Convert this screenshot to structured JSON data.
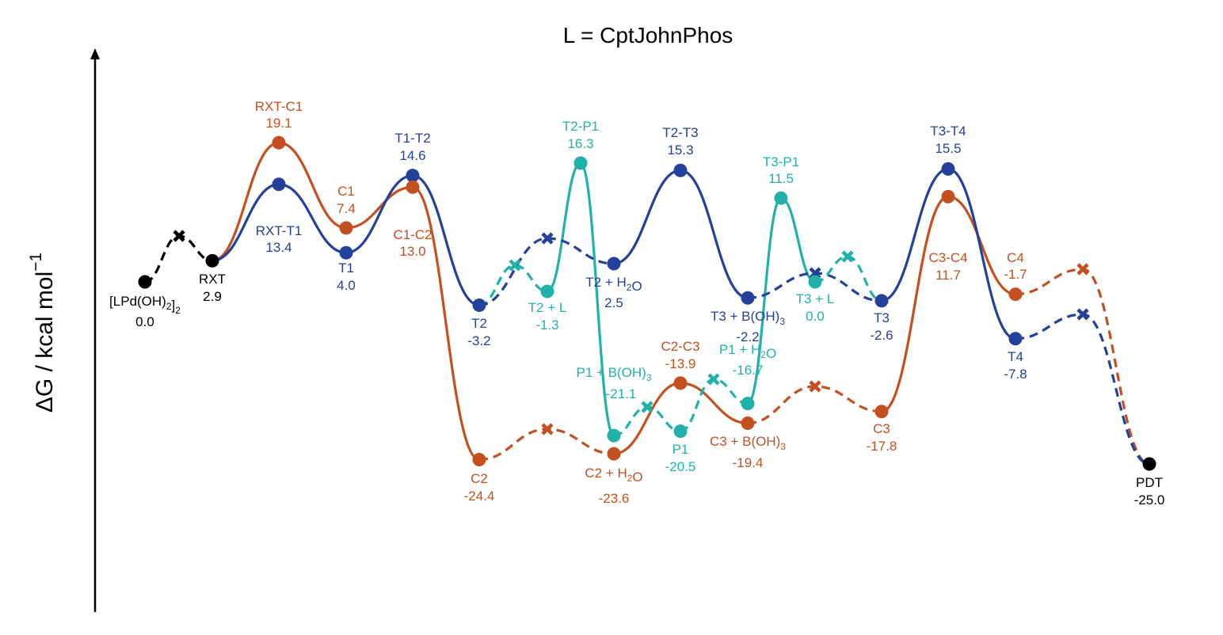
{
  "chart_data": {
    "type": "line",
    "title": "L = CptJohnPhos",
    "ylabel": "ΔG / kcal mol",
    "ylabel_superscript": "−1",
    "yunit": "kcal/mol",
    "grid": false,
    "legend": "none",
    "colors": {
      "black": "#000000",
      "blue": "#23409A",
      "orange": "#C3501E",
      "teal": "#20B2AA"
    },
    "points": [
      {
        "id": "start",
        "label": "[LPd(OH)2]2",
        "value": 0.0,
        "text": "0.0",
        "color": "black",
        "marker": "dot"
      },
      {
        "id": "x0",
        "color": "black",
        "marker": "x"
      },
      {
        "id": "rxt",
        "label": "RXT",
        "value": 2.9,
        "text": "2.9",
        "color": "black",
        "marker": "dot"
      },
      {
        "id": "rxt_c1",
        "label": "RXT-C1",
        "value": 19.1,
        "text": "19.1",
        "color": "orange",
        "marker": "dot"
      },
      {
        "id": "rxt_t1",
        "label": "RXT-T1",
        "value": 13.4,
        "text": "13.4",
        "color": "blue",
        "marker": "dot"
      },
      {
        "id": "c1",
        "label": "C1",
        "value": 7.4,
        "text": "7.4",
        "color": "orange",
        "marker": "dot"
      },
      {
        "id": "t1",
        "label": "T1",
        "value": 4.0,
        "text": "4.0",
        "color": "blue",
        "marker": "dot"
      },
      {
        "id": "t1_t2",
        "label": "T1-T2",
        "value": 14.6,
        "text": "14.6",
        "color": "blue",
        "marker": "dot"
      },
      {
        "id": "c1_c2",
        "label": "C1-C2",
        "value": 13.0,
        "text": "13.0",
        "color": "orange",
        "marker": "dot"
      },
      {
        "id": "t2",
        "label": "T2",
        "value": -3.2,
        "text": "-3.2",
        "color": "blue",
        "marker": "dot"
      },
      {
        "id": "c2",
        "label": "C2",
        "value": -24.4,
        "text": "-24.4",
        "color": "orange",
        "marker": "dot"
      },
      {
        "id": "x_teal1",
        "color": "teal",
        "marker": "x"
      },
      {
        "id": "t2l",
        "label": "T2 + L",
        "value": -1.3,
        "text": "-1.3",
        "color": "teal",
        "marker": "dot"
      },
      {
        "id": "t2_p1",
        "label": "T2-P1",
        "value": 16.3,
        "text": "16.3",
        "color": "teal",
        "marker": "dot"
      },
      {
        "id": "x_blue1",
        "color": "blue",
        "marker": "x"
      },
      {
        "id": "x_or1",
        "color": "orange",
        "marker": "x"
      },
      {
        "id": "t2h2o",
        "label": "T2 + H2O",
        "value": 2.5,
        "text": "2.5",
        "color": "blue",
        "marker": "dot"
      },
      {
        "id": "p1b",
        "label": "P1 + B(OH)3",
        "value": -21.1,
        "text": "-21.1",
        "color": "teal",
        "marker": "dot"
      },
      {
        "id": "c2h2o",
        "label": "C2 + H2O",
        "value": -23.6,
        "text": "-23.6",
        "color": "orange",
        "marker": "dot"
      },
      {
        "id": "x_teal2",
        "color": "teal",
        "marker": "x"
      },
      {
        "id": "t2_t3",
        "label": "T2-T3",
        "value": 15.3,
        "text": "15.3",
        "color": "blue",
        "marker": "dot"
      },
      {
        "id": "c2_c3",
        "label": "C2-C3",
        "value": -13.9,
        "text": "-13.9",
        "color": "orange",
        "marker": "dot"
      },
      {
        "id": "p1",
        "label": "P1",
        "value": -20.5,
        "text": "-20.5",
        "color": "teal",
        "marker": "dot"
      },
      {
        "id": "x_teal3",
        "color": "teal",
        "marker": "x"
      },
      {
        "id": "t3b",
        "label": "T3 + B(OH)3",
        "value": -2.2,
        "text": "-2.2",
        "color": "blue",
        "marker": "dot"
      },
      {
        "id": "p1h2o",
        "label": "P1 + H2O",
        "value": -16.7,
        "text": "-16.7",
        "color": "teal",
        "marker": "dot"
      },
      {
        "id": "c3b",
        "label": "C3 + B(OH)3",
        "value": -19.4,
        "text": "-19.4",
        "color": "orange",
        "marker": "dot"
      },
      {
        "id": "t3_p1",
        "label": "T3-P1",
        "value": 11.5,
        "text": "11.5",
        "color": "teal",
        "marker": "dot"
      },
      {
        "id": "x_blue2",
        "color": "blue",
        "marker": "x"
      },
      {
        "id": "t3l",
        "label": "T3 + L",
        "value": 0.0,
        "text": "0.0",
        "color": "teal",
        "marker": "dot"
      },
      {
        "id": "x_or2",
        "color": "orange",
        "marker": "x"
      },
      {
        "id": "x_teal4",
        "color": "teal",
        "marker": "x"
      },
      {
        "id": "t3",
        "label": "T3",
        "value": -2.6,
        "text": "-2.6",
        "color": "blue",
        "marker": "dot"
      },
      {
        "id": "c3",
        "label": "C3",
        "value": -17.8,
        "text": "-17.8",
        "color": "orange",
        "marker": "dot"
      },
      {
        "id": "t3_t4",
        "label": "T3-T4",
        "value": 15.5,
        "text": "15.5",
        "color": "blue",
        "marker": "dot"
      },
      {
        "id": "c3_c4",
        "label": "C3-C4",
        "value": 11.7,
        "text": "11.7",
        "color": "orange",
        "marker": "dot"
      },
      {
        "id": "c4",
        "label": "C4",
        "value": -1.7,
        "text": "-1.7",
        "color": "orange",
        "marker": "dot"
      },
      {
        "id": "t4",
        "label": "T4",
        "value": -7.8,
        "text": "-7.8",
        "color": "blue",
        "marker": "dot"
      },
      {
        "id": "x_or3",
        "color": "orange",
        "marker": "x"
      },
      {
        "id": "x_blue3",
        "color": "blue",
        "marker": "x"
      },
      {
        "id": "pdt",
        "label": "PDT",
        "value": -25.0,
        "text": "-25.0",
        "color": "black",
        "marker": "dot"
      }
    ],
    "segments": [
      {
        "path": [
          "start",
          "x0",
          "rxt"
        ],
        "color": "black",
        "style": "dashed"
      },
      {
        "path": [
          "rxt",
          "rxt_c1",
          "c1",
          "c1_c2",
          "c2"
        ],
        "color": "orange",
        "style": "solid"
      },
      {
        "path": [
          "rxt",
          "rxt_t1",
          "t1",
          "t1_t2",
          "t2"
        ],
        "color": "blue",
        "style": "solid"
      },
      {
        "path": [
          "t2",
          "x_teal1",
          "t2l"
        ],
        "color": "teal",
        "style": "dashed"
      },
      {
        "path": [
          "t2l",
          "t2_p1",
          "p1b"
        ],
        "color": "teal",
        "style": "solid"
      },
      {
        "path": [
          "t2",
          "x_blue1",
          "t2h2o"
        ],
        "color": "blue",
        "style": "dashed"
      },
      {
        "path": [
          "c2",
          "x_or1",
          "c2h2o"
        ],
        "color": "orange",
        "style": "dashed"
      },
      {
        "path": [
          "p1b",
          "x_teal2",
          "p1"
        ],
        "color": "teal",
        "style": "dashed"
      },
      {
        "path": [
          "t2h2o",
          "t2_t3",
          "t3b"
        ],
        "color": "blue",
        "style": "solid"
      },
      {
        "path": [
          "c2h2o",
          "c2_c3",
          "c3b"
        ],
        "color": "orange",
        "style": "solid"
      },
      {
        "path": [
          "p1",
          "x_teal3",
          "p1h2o"
        ],
        "color": "teal",
        "style": "dashed"
      },
      {
        "path": [
          "p1h2o",
          "t3_p1",
          "t3l"
        ],
        "color": "teal",
        "style": "solid"
      },
      {
        "path": [
          "t3b",
          "x_blue2",
          "t3"
        ],
        "color": "blue",
        "style": "dashed"
      },
      {
        "path": [
          "t3l",
          "x_teal4",
          "t3"
        ],
        "color": "teal",
        "style": "dashed"
      },
      {
        "path": [
          "c3b",
          "x_or2",
          "c3"
        ],
        "color": "orange",
        "style": "dashed"
      },
      {
        "path": [
          "c3",
          "c3_c4",
          "c4"
        ],
        "color": "orange",
        "style": "solid"
      },
      {
        "path": [
          "t3",
          "t3_t4",
          "t4"
        ],
        "color": "blue",
        "style": "solid"
      },
      {
        "path": [
          "c4",
          "x_or3",
          "pdt"
        ],
        "color": "orange",
        "style": "dashed"
      },
      {
        "path": [
          "t4",
          "x_blue3",
          "pdt"
        ],
        "color": "blue",
        "style": "dashed"
      }
    ]
  }
}
